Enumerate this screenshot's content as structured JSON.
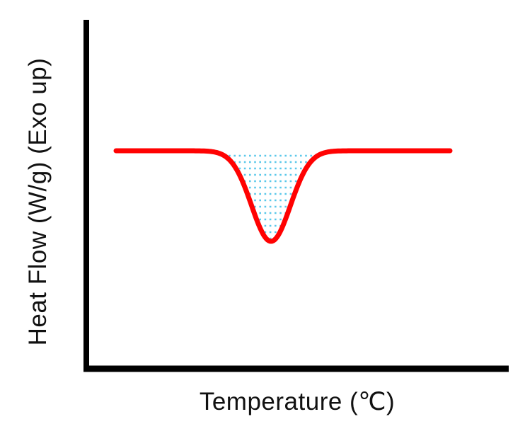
{
  "chart_data": {
    "type": "line",
    "title": "",
    "xlabel": "Temperature (℃)",
    "ylabel": "Heat Flow (W/g) (Exo up)",
    "x_axis": {
      "tick_labels": [],
      "numeric_range": "unlabeled"
    },
    "y_axis": {
      "tick_labels": [],
      "numeric_range": "unlabeled"
    },
    "grid": false,
    "legend": "none",
    "y_baseline": 0,
    "peak": {
      "shape": "gaussian",
      "center": 0.464,
      "sigma": 0.058,
      "depth": -1,
      "direction": "downward (endothermic dip)"
    },
    "series": [
      {
        "name": "heat flow",
        "color": "#ff0202",
        "stroke_width": 7
      }
    ],
    "fill": {
      "style": "horizontal dotted lines",
      "color": "#5bc8ea",
      "region": "area between baseline and dip"
    },
    "axes": {
      "color": "#000000"
    }
  }
}
